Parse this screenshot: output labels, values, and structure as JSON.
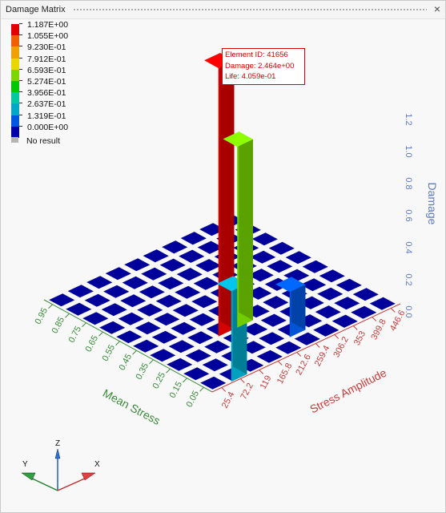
{
  "window": {
    "title": "Damage Matrix",
    "close_symbol": "×"
  },
  "legend": {
    "entries": [
      {
        "label": "1.187E+00",
        "color": "#e00000"
      },
      {
        "label": "1.055E+00",
        "color": "#f06000"
      },
      {
        "label": "9.230E-01",
        "color": "#f0a000"
      },
      {
        "label": "7.912E-01",
        "color": "#e8d800"
      },
      {
        "label": "6.593E-01",
        "color": "#78d800"
      },
      {
        "label": "5.274E-01",
        "color": "#00c800"
      },
      {
        "label": "3.956E-01",
        "color": "#00c8a0"
      },
      {
        "label": "2.637E-01",
        "color": "#00a8c8"
      },
      {
        "label": "1.319E-01",
        "color": "#0058e0"
      },
      {
        "label": "0.000E+00",
        "color": "#0000a8"
      }
    ],
    "no_result": "No result"
  },
  "probe": {
    "element_id": "Element ID: 41656",
    "damage": "Damage: 2.464e+00",
    "life": "Life: 4.059e-01"
  },
  "chart_data": {
    "type": "bar3d",
    "x_axis": {
      "label": "Stress Amplitude",
      "ticks": [
        "25.4",
        "72.2",
        "119",
        "165.8",
        "212.6",
        "259.4",
        "306.2",
        "353",
        "399.8",
        "446.6"
      ]
    },
    "y_axis": {
      "label": "Mean Stress",
      "ticks": [
        "0.05",
        "0.15",
        "0.25",
        "0.35",
        "0.45",
        "0.55",
        "0.65",
        "0.75",
        "0.85",
        "0.95"
      ]
    },
    "z_axis": {
      "label": "Damage",
      "ticks": [
        "0.0",
        "0.2",
        "0.4",
        "0.6",
        "0.8",
        "1.0",
        "1.2"
      ],
      "range": [
        0,
        1.2
      ]
    },
    "bars": [
      {
        "x": "72.2",
        "y": "0.05",
        "value": 0.4,
        "color": "#00a8c8"
      },
      {
        "x": "165.8",
        "y": "0.35",
        "value": 1.187,
        "color": "#e00000"
      },
      {
        "x": "212.6",
        "y": "0.35",
        "value": 0.8,
        "color": "#78d800"
      },
      {
        "x": "259.4",
        "y": "0.15",
        "value": 0.2,
        "color": "#0058e0"
      }
    ]
  },
  "colors": {
    "x_axis": "#c83a3a",
    "y_axis": "#3a8a3a",
    "z_axis": "#5a7ac8",
    "grid_cell": "#00009a"
  },
  "triad": {
    "x": "X",
    "y": "Y",
    "z": "Z"
  }
}
